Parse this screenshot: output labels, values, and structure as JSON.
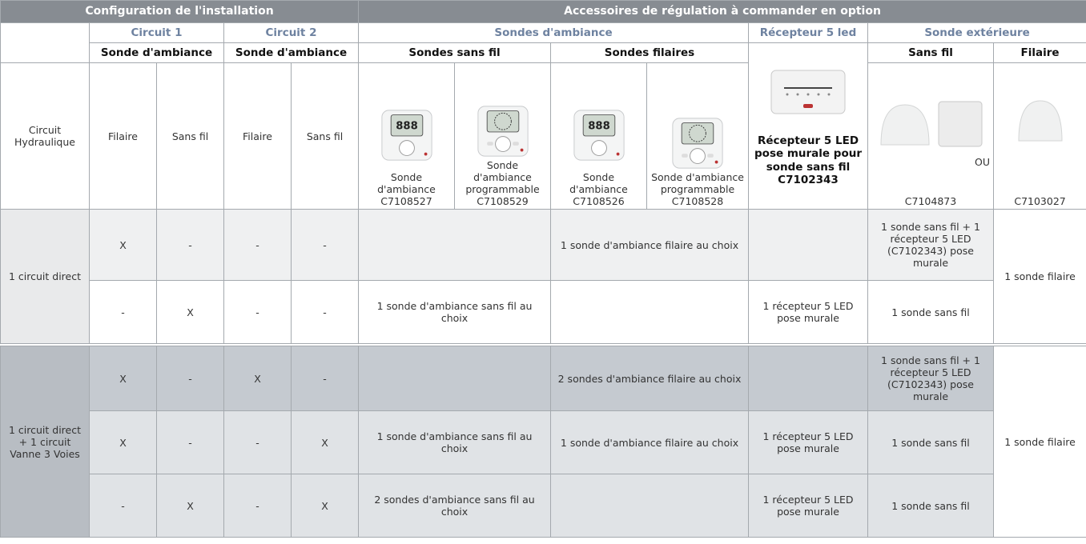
{
  "header": {
    "configuration": "Configuration de l'installation",
    "accessories": "Accessoires de régulation à commander en option"
  },
  "subheader": {
    "circuit1": "Circuit 1",
    "circuit2": "Circuit 2",
    "sondes_ambiance": "Sondes d'ambiance",
    "recepteur": "Récepteur 5 led",
    "sonde_exterieure": "Sonde extérieure"
  },
  "subheader2": [
    "Sonde d'ambiance",
    "Sonde d'ambiance",
    "Sondes sans fil",
    "Sondes filaires",
    "Sans fil",
    "Filaire"
  ],
  "product_row": {
    "circuit_hydraulique": "Circuit Hydraulique",
    "c1_filaire": "Filaire",
    "c1_sans_fil": "Sans fil",
    "c2_filaire": "Filaire",
    "c2_sans_fil": "Sans fil",
    "products": [
      {
        "label": "Sonde d'ambiance",
        "code": "C7108527"
      },
      {
        "label": "Sonde d'ambiance programmable",
        "code": "C7108529"
      },
      {
        "label": "Sonde d'ambiance",
        "code": "C7108526"
      },
      {
        "label": "Sonde d'ambiance programmable",
        "code": "C7108528"
      }
    ],
    "recepteur": "Récepteur 5 LED pose murale pour sonde sans fil",
    "recepteur_code": "C7102343",
    "ou": "OU",
    "ext_sans_fil_code": "C7104873",
    "ext_filaire_code": "C7103027"
  },
  "groups": [
    {
      "label": "1 circuit direct",
      "ext_filaire": "1 sonde filaire",
      "rows": [
        {
          "c1_filaire": "X",
          "c1_sans_fil": "-",
          "c2_filaire": "-",
          "c2_sans_fil": "-",
          "sondes_sans_fil": null,
          "sondes_filaires": "1 sonde d'ambiance filaire au choix",
          "recepteur": null,
          "ext_sans_fil": "1 sonde sans fil + 1 récepteur 5 LED (C7102343) pose murale"
        },
        {
          "c1_filaire": "-",
          "c1_sans_fil": "X",
          "c2_filaire": "-",
          "c2_sans_fil": "-",
          "sondes_sans_fil": "1 sonde d'ambiance sans fil au choix",
          "sondes_filaires": null,
          "recepteur": "1 récepteur 5 LED pose murale",
          "ext_sans_fil": "1 sonde sans fil"
        }
      ]
    },
    {
      "label": "1 circuit direct + 1 circuit Vanne 3 Voies",
      "ext_filaire": "1 sonde filaire",
      "rows": [
        {
          "c1_filaire": "X",
          "c1_sans_fil": "-",
          "c2_filaire": "X",
          "c2_sans_fil": "-",
          "sondes_sans_fil": null,
          "sondes_filaires": "2 sondes d'ambiance filaire au choix",
          "recepteur": null,
          "ext_sans_fil": "1 sonde sans fil + 1 récepteur 5 LED (C7102343) pose murale"
        },
        {
          "c1_filaire": "X",
          "c1_sans_fil": "-",
          "c2_filaire": "-",
          "c2_sans_fil": "X",
          "sondes_sans_fil": "1 sonde d'ambiance sans fil au choix",
          "sondes_filaires": "1 sonde d'ambiance filaire au choix",
          "recepteur": "1 récepteur 5 LED pose murale",
          "ext_sans_fil": "1 sonde sans fil"
        },
        {
          "c1_filaire": "-",
          "c1_sans_fil": "X",
          "c2_filaire": "-",
          "c2_sans_fil": "X",
          "sondes_sans_fil": "2 sondes d'ambiance sans fil au choix",
          "sondes_filaires": null,
          "recepteur": "1 récepteur 5 LED pose murale",
          "ext_sans_fil": "1 sonde sans fil"
        }
      ]
    }
  ]
}
